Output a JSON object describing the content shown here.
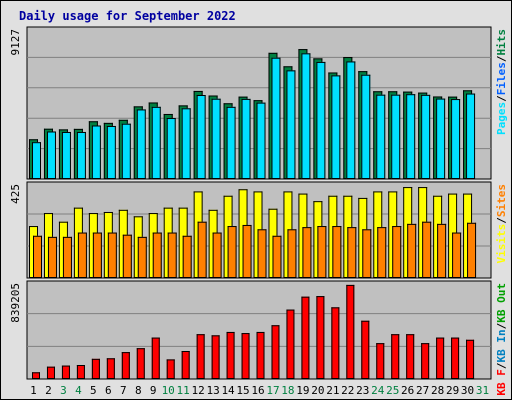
{
  "title": "Daily usage for September 2022",
  "colors": {
    "pages": "#00e0ff",
    "files": "#0060ff",
    "hits": "#008040",
    "visits": "#ffff00",
    "sites": "#ff8000",
    "kbin": "#0080c0",
    "kbout": "#00a000",
    "kbf": "#ff0000",
    "title": "#0000a0",
    "panel": "#c0c0c0"
  },
  "chart_data": [
    {
      "type": "bar",
      "title": "Daily usage for September 2022",
      "max_label": "9127",
      "ylim": [
        0,
        9127
      ],
      "grid": true,
      "legend": [
        {
          "label": "Pages",
          "color": "#00e0ff"
        },
        {
          "label": "/",
          "color": "#000000"
        },
        {
          "label": "Files",
          "color": "#0060ff"
        },
        {
          "label": "/",
          "color": "#000000"
        },
        {
          "label": "Hits",
          "color": "#008040"
        }
      ],
      "categories": [
        "1",
        "2",
        "3",
        "4",
        "5",
        "6",
        "7",
        "8",
        "9",
        "10",
        "11",
        "12",
        "13",
        "14",
        "15",
        "16",
        "17",
        "18",
        "19",
        "20",
        "21",
        "22",
        "23",
        "24",
        "25",
        "26",
        "27",
        "28",
        "29",
        "30"
      ],
      "series": [
        {
          "name": "Hits",
          "values": [
            2450,
            3100,
            3060,
            3090,
            3560,
            3460,
            3650,
            4480,
            4720,
            4010,
            4540,
            5430,
            5150,
            4670,
            5080,
            4860,
            7780,
            6950,
            8010,
            7440,
            6570,
            7520,
            6650,
            5410,
            5410,
            5390,
            5330,
            5090,
            5080,
            5470
          ]
        },
        {
          "name": "Files",
          "values": [
            2270,
            2930,
            2900,
            2900,
            3300,
            3270,
            3410,
            4290,
            4450,
            3760,
            4360,
            5180,
            4950,
            4450,
            4940,
            4710,
            7480,
            6700,
            7750,
            7220,
            6390,
            7250,
            6430,
            5200,
            5200,
            5230,
            5190,
            4960,
            4930,
            5270
          ]
        },
        {
          "name": "Pages",
          "values": [
            2270,
            2930,
            2900,
            2900,
            3300,
            3270,
            3410,
            4290,
            4450,
            3760,
            4360,
            5180,
            4950,
            4450,
            4940,
            4710,
            7480,
            6700,
            7750,
            7220,
            6390,
            7250,
            6430,
            5200,
            5200,
            5230,
            5190,
            4960,
            4930,
            5270
          ]
        }
      ]
    },
    {
      "type": "bar",
      "max_label": "425",
      "ylim": [
        0,
        425
      ],
      "grid": true,
      "legend": [
        {
          "label": "Visits",
          "color": "#ffff00"
        },
        {
          "label": "/",
          "color": "#000000"
        },
        {
          "label": "Sites",
          "color": "#ff8000"
        }
      ],
      "categories": [
        "1",
        "2",
        "3",
        "4",
        "5",
        "6",
        "7",
        "8",
        "9",
        "10",
        "11",
        "12",
        "13",
        "14",
        "15",
        "16",
        "17",
        "18",
        "19",
        "20",
        "21",
        "22",
        "23",
        "24",
        "25",
        "26",
        "27",
        "28",
        "29",
        "30"
      ],
      "series": [
        {
          "name": "Visits",
          "values": [
            240,
            300,
            260,
            325,
            300,
            305,
            315,
            285,
            300,
            325,
            325,
            400,
            315,
            380,
            410,
            400,
            320,
            400,
            390,
            355,
            380,
            380,
            370,
            400,
            400,
            420,
            420,
            380,
            390,
            390
          ]
        },
        {
          "name": "Sites",
          "values": [
            195,
            190,
            190,
            210,
            210,
            210,
            200,
            190,
            210,
            210,
            195,
            260,
            210,
            240,
            245,
            225,
            195,
            225,
            235,
            240,
            240,
            235,
            225,
            235,
            240,
            250,
            260,
            250,
            210,
            255
          ]
        }
      ]
    },
    {
      "type": "bar",
      "max_label": "839205",
      "ylim": [
        0,
        839205
      ],
      "grid": true,
      "legend": [
        {
          "label": "KB F",
          "color": "#ff0000"
        },
        {
          "label": "/",
          "color": "#000000"
        },
        {
          "label": "KB In",
          "color": "#0080c0"
        },
        {
          "label": "/",
          "color": "#000000"
        },
        {
          "label": "KB Out",
          "color": "#00a000"
        }
      ],
      "categories": [
        "1",
        "2",
        "3",
        "4",
        "5",
        "6",
        "7",
        "8",
        "9",
        "10",
        "11",
        "12",
        "13",
        "14",
        "15",
        "16",
        "17",
        "18",
        "19",
        "20",
        "21",
        "22",
        "23",
        "24",
        "25",
        "26",
        "27",
        "28",
        "29",
        "30"
      ],
      "series": [
        {
          "name": "KB F",
          "values": [
            60000,
            110000,
            120000,
            125000,
            180000,
            185000,
            240000,
            275000,
            370000,
            175000,
            250000,
            400000,
            390000,
            420000,
            410000,
            420000,
            480000,
            620000,
            735000,
            740000,
            640000,
            840000,
            520000,
            320000,
            400000,
            400000,
            320000,
            370000,
            370000,
            350000
          ]
        }
      ]
    }
  ],
  "x_labels": [
    {
      "label": "1",
      "color": "#000000"
    },
    {
      "label": "2",
      "color": "#000000"
    },
    {
      "label": "3",
      "color": "#008040"
    },
    {
      "label": "4",
      "color": "#008040"
    },
    {
      "label": "5",
      "color": "#000000"
    },
    {
      "label": "6",
      "color": "#000000"
    },
    {
      "label": "7",
      "color": "#000000"
    },
    {
      "label": "8",
      "color": "#000000"
    },
    {
      "label": "9",
      "color": "#000000"
    },
    {
      "label": "10",
      "color": "#008040"
    },
    {
      "label": "11",
      "color": "#008040"
    },
    {
      "label": "12",
      "color": "#000000"
    },
    {
      "label": "13",
      "color": "#000000"
    },
    {
      "label": "14",
      "color": "#000000"
    },
    {
      "label": "15",
      "color": "#000000"
    },
    {
      "label": "16",
      "color": "#000000"
    },
    {
      "label": "17",
      "color": "#008040"
    },
    {
      "label": "18",
      "color": "#008040"
    },
    {
      "label": "19",
      "color": "#000000"
    },
    {
      "label": "20",
      "color": "#000000"
    },
    {
      "label": "21",
      "color": "#000000"
    },
    {
      "label": "22",
      "color": "#000000"
    },
    {
      "label": "23",
      "color": "#000000"
    },
    {
      "label": "24",
      "color": "#008040"
    },
    {
      "label": "25",
      "color": "#008040"
    },
    {
      "label": "26",
      "color": "#000000"
    },
    {
      "label": "27",
      "color": "#000000"
    },
    {
      "label": "28",
      "color": "#000000"
    },
    {
      "label": "29",
      "color": "#000000"
    },
    {
      "label": "30",
      "color": "#000000"
    },
    {
      "label": "31",
      "color": "#008040"
    }
  ]
}
